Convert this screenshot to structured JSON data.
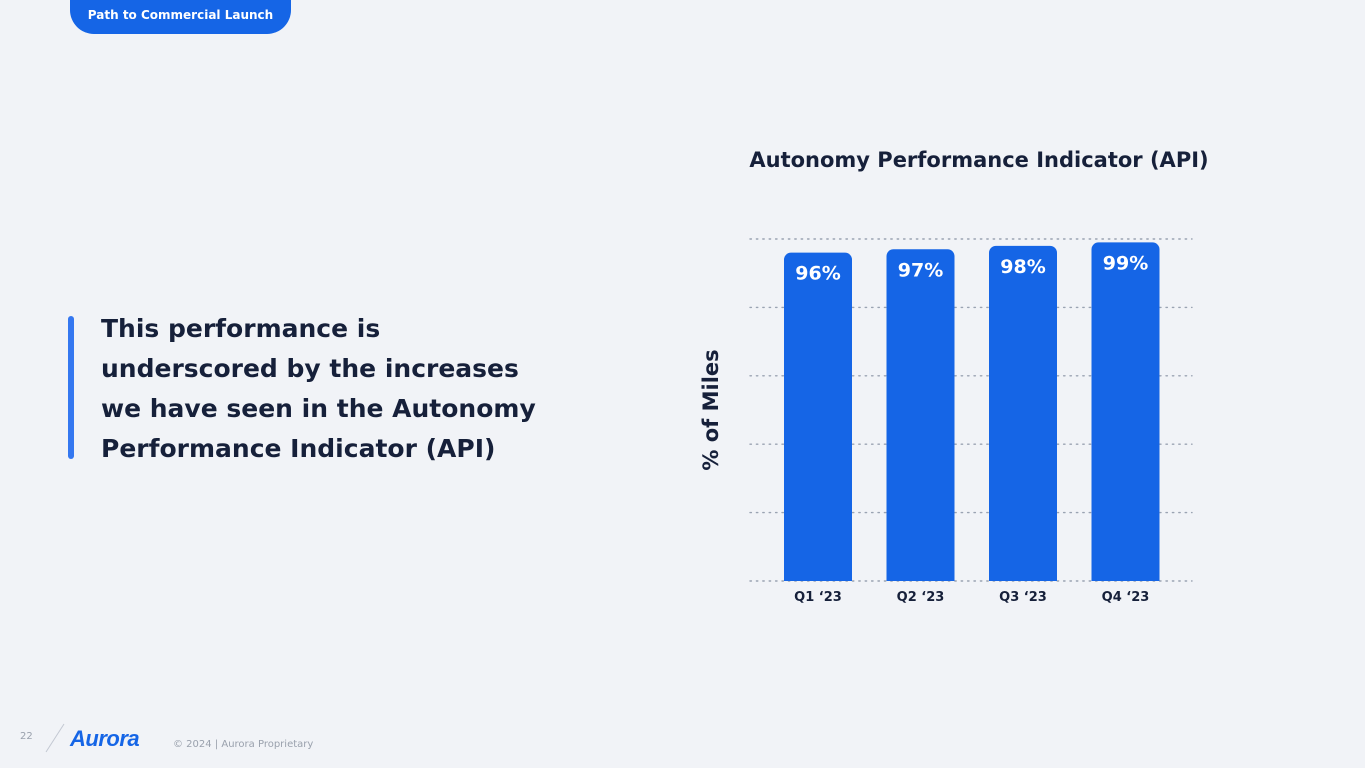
{
  "header": {
    "section_label": "Path to Commercial Launch"
  },
  "callout": {
    "text": "This performance is underscored by the increases we have seen in the Autonomy Performance Indicator (API)"
  },
  "footer": {
    "page_number": "22",
    "logo_text": "Aurora",
    "copyright": "© 2024 | Aurora Proprietary"
  },
  "colors": {
    "accent": "#1565e6",
    "bar": "#1565e6",
    "quote_bar": "#3477f0",
    "background": "#f1f3f7",
    "text": "#16203a"
  },
  "chart_data": {
    "type": "bar",
    "title": "Autonomy Performance Indicator (API)",
    "ylabel": "% of Miles",
    "xlabel": "",
    "categories": [
      "Q1 ‘23",
      "Q2 ‘23",
      "Q3 ‘23",
      "Q4 ‘23"
    ],
    "values": [
      96,
      97,
      98,
      99
    ],
    "data_labels": [
      "96%",
      "97%",
      "98%",
      "99%"
    ],
    "ylim": [
      0,
      100
    ],
    "grid": true,
    "grid_style": "dotted",
    "legend": "none"
  }
}
